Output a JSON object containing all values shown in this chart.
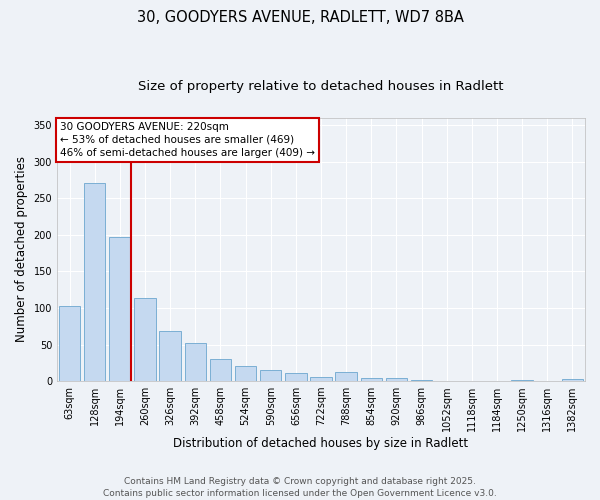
{
  "title1": "30, GOODYERS AVENUE, RADLETT, WD7 8BA",
  "title2": "Size of property relative to detached houses in Radlett",
  "xlabel": "Distribution of detached houses by size in Radlett",
  "ylabel": "Number of detached properties",
  "categories": [
    "63sqm",
    "128sqm",
    "194sqm",
    "260sqm",
    "326sqm",
    "392sqm",
    "458sqm",
    "524sqm",
    "590sqm",
    "656sqm",
    "722sqm",
    "788sqm",
    "854sqm",
    "920sqm",
    "986sqm",
    "1052sqm",
    "1118sqm",
    "1184sqm",
    "1250sqm",
    "1316sqm",
    "1382sqm"
  ],
  "values": [
    102,
    271,
    197,
    113,
    68,
    52,
    30,
    20,
    15,
    11,
    6,
    12,
    4,
    4,
    1,
    0,
    0,
    0,
    2,
    0,
    3
  ],
  "bar_color": "#c5d9f0",
  "bar_edge_color": "#7bafd4",
  "vline_color": "#cc0000",
  "annotation_text": "30 GOODYERS AVENUE: 220sqm\n← 53% of detached houses are smaller (469)\n46% of semi-detached houses are larger (409) →",
  "annotation_box_color": "#cc0000",
  "ylim": [
    0,
    360
  ],
  "yticks": [
    0,
    50,
    100,
    150,
    200,
    250,
    300,
    350
  ],
  "background_color": "#eef2f7",
  "footer": "Contains HM Land Registry data © Crown copyright and database right 2025.\nContains public sector information licensed under the Open Government Licence v3.0.",
  "grid_color": "#ffffff",
  "title_fontsize": 10.5,
  "subtitle_fontsize": 9.5,
  "label_fontsize": 8.5,
  "tick_fontsize": 7,
  "footer_fontsize": 6.5,
  "annotation_fontsize": 7.5
}
